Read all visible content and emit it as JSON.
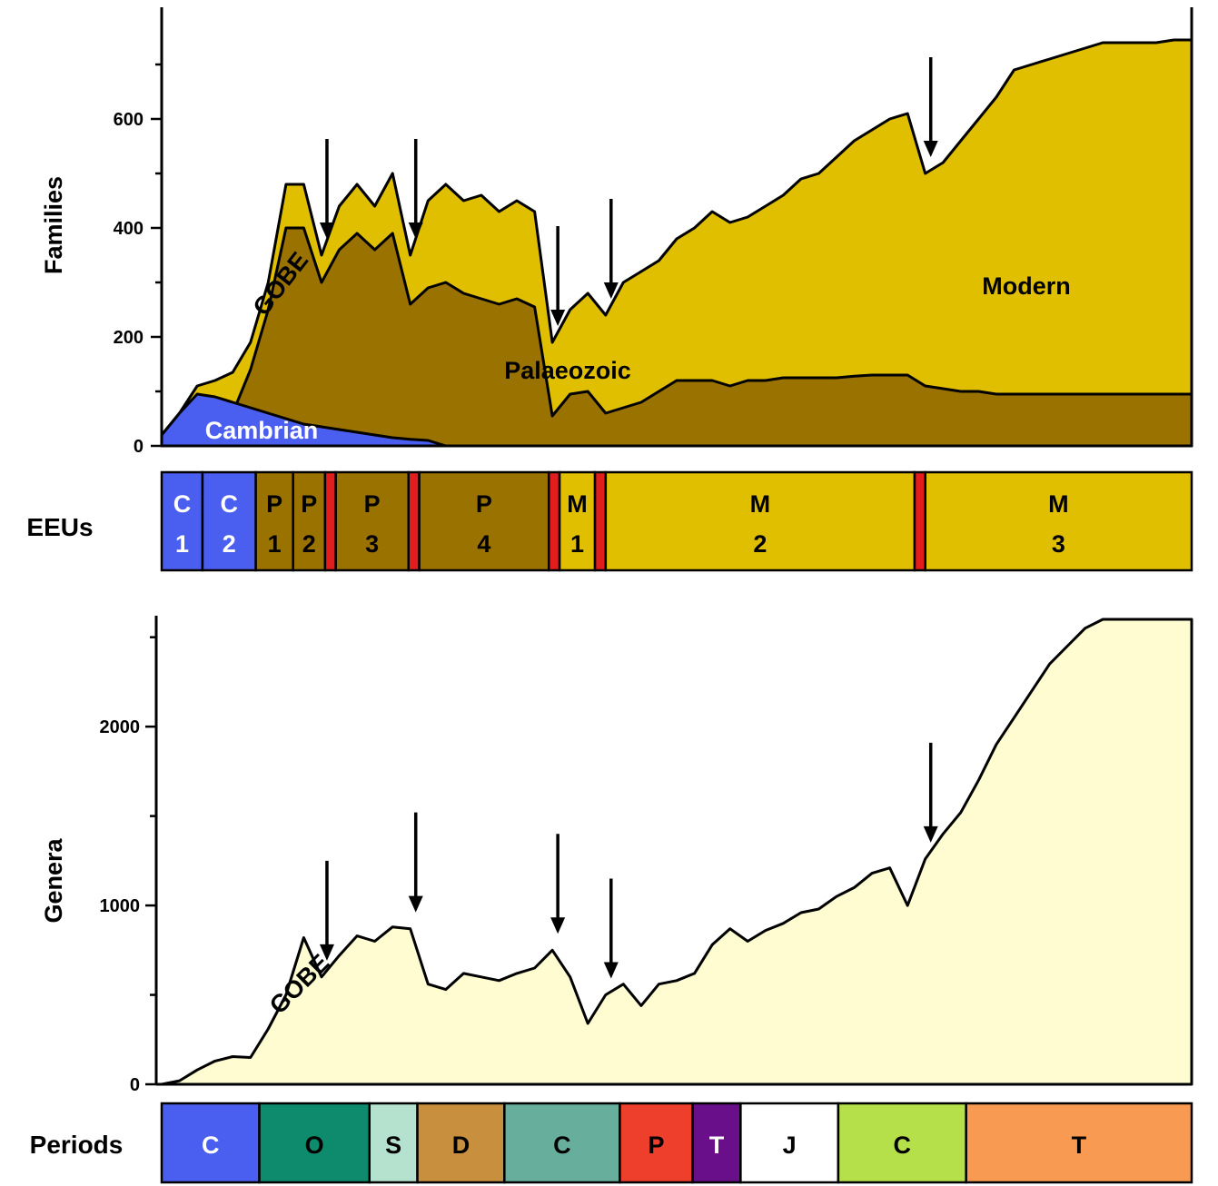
{
  "chart_data": [
    {
      "type": "area",
      "ylabel": "Families",
      "ylim": [
        0,
        760
      ],
      "yticks": [
        0,
        200,
        400,
        600
      ],
      "colors": {
        "modern": "#dfbf00",
        "palaeozoic": "#9a7200",
        "cambrian": "#4a5ff0"
      },
      "series_labels": {
        "gobe": "GOBE",
        "palaeozoic": "Palaeozoic",
        "modern": "Modern",
        "cambrian": "Cambrian"
      },
      "x": [
        0,
        1,
        2,
        3,
        4,
        5,
        6,
        7,
        8,
        9,
        10,
        11,
        12,
        13,
        14,
        15,
        16,
        17,
        18,
        19,
        20,
        21,
        22,
        23,
        24,
        25,
        26,
        27,
        28,
        29,
        30,
        31,
        32,
        33,
        34,
        35,
        36,
        37,
        38,
        39,
        40,
        41,
        42,
        43,
        44,
        45,
        46,
        47,
        48,
        49,
        50,
        51,
        52,
        53,
        54,
        55,
        56,
        57,
        58
      ],
      "total": [
        20,
        60,
        110,
        120,
        135,
        190,
        300,
        480,
        480,
        350,
        440,
        480,
        440,
        500,
        350,
        450,
        480,
        450,
        460,
        430,
        450,
        430,
        190,
        250,
        280,
        240,
        300,
        320,
        340,
        380,
        400,
        430,
        410,
        420,
        440,
        460,
        490,
        500,
        530,
        560,
        580,
        600,
        610,
        500,
        520,
        560,
        600,
        640,
        690,
        700,
        710,
        720,
        730,
        740,
        740,
        740,
        740,
        745,
        745
      ],
      "palaeozoic": [
        0,
        0,
        5,
        30,
        60,
        140,
        250,
        400,
        400,
        300,
        360,
        390,
        360,
        390,
        260,
        290,
        300,
        280,
        270,
        260,
        270,
        255,
        55,
        95,
        100,
        60,
        70,
        80,
        100,
        120,
        120,
        120,
        110,
        120,
        120,
        125,
        125,
        125,
        125,
        128,
        130,
        130,
        130,
        110,
        105,
        100,
        100,
        95,
        95,
        95,
        95,
        95,
        95,
        95,
        95,
        95,
        95,
        95,
        95
      ],
      "cambrian": [
        20,
        60,
        95,
        90,
        80,
        70,
        60,
        50,
        40,
        35,
        30,
        25,
        20,
        15,
        12,
        10,
        0,
        0,
        0,
        0,
        0,
        0,
        0,
        0,
        0,
        0,
        0,
        0,
        0,
        0,
        0,
        0,
        0,
        0,
        0,
        0,
        0,
        0,
        0,
        0,
        0,
        0,
        0,
        0,
        0,
        0,
        0,
        0,
        0,
        0,
        0,
        0,
        0,
        0,
        0,
        0,
        0,
        0,
        0
      ],
      "extinction_arrows_x": [
        9,
        14,
        22,
        25,
        43
      ]
    },
    {
      "type": "area",
      "ylabel": "Genera",
      "ylim": [
        0,
        2600
      ],
      "yticks": [
        0,
        1000,
        2000
      ],
      "fill": "#fefcd0",
      "series_labels": {
        "gobe": "GOBE"
      },
      "x": [
        0,
        1,
        2,
        3,
        4,
        5,
        6,
        7,
        8,
        9,
        10,
        11,
        12,
        13,
        14,
        15,
        16,
        17,
        18,
        19,
        20,
        21,
        22,
        23,
        24,
        25,
        26,
        27,
        28,
        29,
        30,
        31,
        32,
        33,
        34,
        35,
        36,
        37,
        38,
        39,
        40,
        41,
        42,
        43,
        44,
        45,
        46,
        47,
        48,
        49,
        50,
        51,
        52,
        53,
        54,
        55,
        56,
        57,
        58
      ],
      "values": [
        0,
        20,
        80,
        130,
        155,
        150,
        310,
        500,
        820,
        600,
        720,
        830,
        800,
        880,
        870,
        560,
        530,
        620,
        600,
        580,
        620,
        650,
        750,
        600,
        340,
        500,
        560,
        440,
        560,
        580,
        620,
        780,
        870,
        800,
        860,
        900,
        960,
        980,
        1050,
        1100,
        1180,
        1210,
        1000,
        1260,
        1400,
        1520,
        1700,
        1900,
        2050,
        2200,
        2350,
        2450,
        2550,
        2600,
        2640,
        2660,
        2680,
        2690,
        2700
      ],
      "extinction_arrows_x": [
        9,
        14,
        22,
        25,
        43
      ]
    }
  ],
  "eeus": {
    "label": "EEUs",
    "units": [
      {
        "line1": "C",
        "line2": "1",
        "color": "#4a5ff0",
        "text_color": "#ffffff",
        "start": 0,
        "end": 2.3
      },
      {
        "line1": "C",
        "line2": "2",
        "color": "#4a5ff0",
        "text_color": "#ffffff",
        "start": 2.3,
        "end": 5.3
      },
      {
        "line1": "P",
        "line2": "1",
        "color": "#9a7200",
        "text_color": "#000000",
        "start": 5.3,
        "end": 7.4
      },
      {
        "line1": "P",
        "line2": "2",
        "color": "#9a7200",
        "text_color": "#000000",
        "start": 7.4,
        "end": 9.2
      },
      {
        "line1": "P",
        "line2": "3",
        "color": "#9a7200",
        "text_color": "#000000",
        "start": 9.8,
        "end": 13.9
      },
      {
        "line1": "P",
        "line2": "4",
        "color": "#9a7200",
        "text_color": "#000000",
        "start": 14.5,
        "end": 21.8
      },
      {
        "line1": "M",
        "line2": "1",
        "color": "#dfbf00",
        "text_color": "#000000",
        "start": 22.4,
        "end": 24.4
      },
      {
        "line1": "M",
        "line2": "2",
        "color": "#dfbf00",
        "text_color": "#000000",
        "start": 25.0,
        "end": 42.4
      },
      {
        "line1": "M",
        "line2": "3",
        "color": "#dfbf00",
        "text_color": "#000000",
        "start": 43.0,
        "end": 58
      }
    ],
    "breaks": [
      {
        "start": 9.2,
        "end": 9.8,
        "color": "#e11d1d"
      },
      {
        "start": 13.9,
        "end": 14.5,
        "color": "#e11d1d"
      },
      {
        "start": 21.8,
        "end": 22.4,
        "color": "#e11d1d"
      },
      {
        "start": 24.4,
        "end": 25.0,
        "color": "#e11d1d"
      },
      {
        "start": 42.4,
        "end": 43.0,
        "color": "#e11d1d"
      }
    ]
  },
  "periods": {
    "label": "Periods",
    "items": [
      {
        "abbr": "C",
        "color": "#4a5ff0",
        "text_color": "#ffffff",
        "start": 0,
        "end": 5.5
      },
      {
        "abbr": "O",
        "color": "#0e8a6c",
        "text_color": "#000000",
        "start": 5.5,
        "end": 11.7
      },
      {
        "abbr": "S",
        "color": "#b4e2cf",
        "text_color": "#000000",
        "start": 11.7,
        "end": 14.4
      },
      {
        "abbr": "D",
        "color": "#c8903e",
        "text_color": "#000000",
        "start": 14.4,
        "end": 19.3
      },
      {
        "abbr": "C",
        "color": "#67ae9c",
        "text_color": "#000000",
        "start": 19.3,
        "end": 25.8
      },
      {
        "abbr": "P",
        "color": "#ee3e2c",
        "text_color": "#000000",
        "start": 25.8,
        "end": 29.9
      },
      {
        "abbr": "T",
        "color": "#6a0f8a",
        "text_color": "#ffffff",
        "start": 29.9,
        "end": 32.6
      },
      {
        "abbr": "J",
        "color": "#ffffff",
        "text_color": "#000000",
        "start": 32.6,
        "end": 38.1
      },
      {
        "abbr": "C",
        "color": "#b6e04a",
        "text_color": "#000000",
        "start": 38.1,
        "end": 45.3
      },
      {
        "abbr": "T",
        "color": "#f99a52",
        "text_color": "#000000",
        "start": 45.3,
        "end": 58
      }
    ]
  }
}
